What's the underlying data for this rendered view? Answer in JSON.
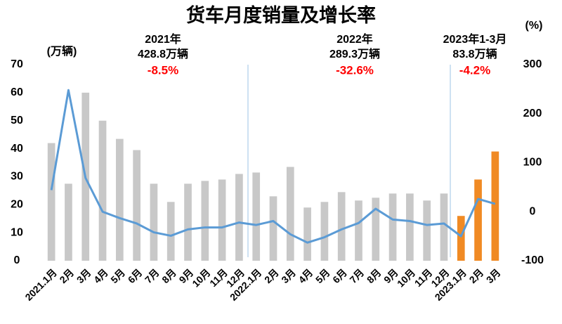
{
  "chart_data": {
    "type": "bar",
    "title": "货车月度销量及增长率",
    "y_label": "(万辆)",
    "y2_label": "(%)",
    "categories": [
      "2021.1月",
      "2月",
      "3月",
      "4月",
      "5月",
      "6月",
      "7月",
      "8月",
      "9月",
      "10月",
      "11月",
      "12月",
      "2022.1月",
      "2月",
      "3月",
      "4月",
      "5月",
      "6月",
      "7月",
      "8月",
      "9月",
      "10月",
      "11月",
      "12月",
      "2023.1月",
      "2月",
      "3月"
    ],
    "series": [
      {
        "type": "bar",
        "colors": [
          "#c8c8c8",
          "#c8c8c8",
          "#c8c8c8",
          "#c8c8c8",
          "#c8c8c8",
          "#c8c8c8",
          "#c8c8c8",
          "#c8c8c8",
          "#c8c8c8",
          "#c8c8c8",
          "#c8c8c8",
          "#c8c8c8",
          "#c8c8c8",
          "#c8c8c8",
          "#c8c8c8",
          "#c8c8c8",
          "#c8c8c8",
          "#c8c8c8",
          "#c8c8c8",
          "#c8c8c8",
          "#c8c8c8",
          "#c8c8c8",
          "#c8c8c8",
          "#c8c8c8",
          "#f08a24",
          "#f08a24",
          "#f08a24"
        ],
        "values": [
          42,
          27.5,
          60,
          50,
          43.5,
          39.5,
          27.5,
          21,
          27.5,
          28.5,
          29,
          31,
          31.5,
          23,
          33.5,
          19,
          21,
          24.5,
          21.5,
          22.5,
          24,
          24,
          21.5,
          24,
          16,
          29,
          39
        ]
      },
      {
        "type": "line",
        "axis": "y2",
        "color": "#5b9bd5",
        "values": [
          44,
          248,
          69,
          0,
          -13,
          -24,
          -42,
          -49,
          -36,
          -32,
          -32,
          -22,
          -27,
          -19,
          -46,
          -63,
          -52,
          -36,
          -23,
          6,
          -16,
          -19,
          -27,
          -24,
          -50,
          26,
          16
        ]
      }
    ],
    "ylim": [
      0,
      70
    ],
    "yticks": [
      0,
      10,
      20,
      30,
      40,
      50,
      60,
      70
    ],
    "y2lim": [
      -100,
      300
    ],
    "y2ticks": [
      -100,
      0,
      100,
      200,
      300
    ],
    "annotations": [
      {
        "lines": [
          "2021年",
          "428.8万辆"
        ],
        "change": "-8.5%"
      },
      {
        "lines": [
          "2022年",
          "289.3万辆"
        ],
        "change": "-32.6%"
      },
      {
        "lines": [
          "2023年1-3月",
          "83.8万辆"
        ],
        "change": "-4.2%"
      }
    ]
  }
}
